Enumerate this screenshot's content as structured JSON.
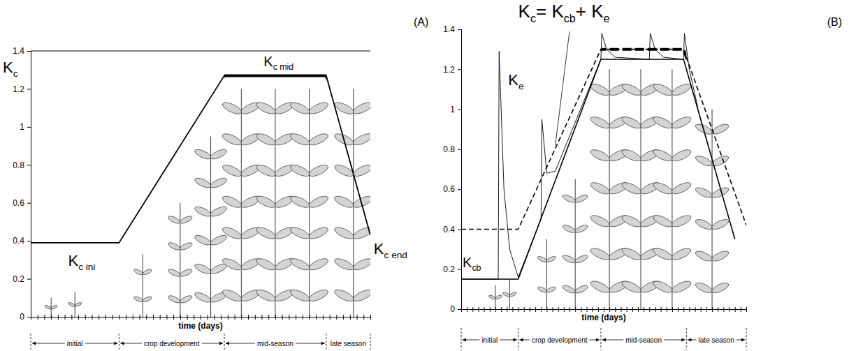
{
  "chart_data": [
    {
      "type": "line",
      "title": "(A)",
      "ylabel": {
        "parts": [
          {
            "text": "K"
          },
          {
            "sub": "c"
          }
        ]
      },
      "xlabel": "time (days)",
      "xlim": [
        0,
        100
      ],
      "ylim": [
        0,
        1.4
      ],
      "xticks": [
        0,
        2,
        4,
        6,
        8,
        10,
        12,
        14,
        16,
        18,
        20,
        22,
        24,
        26,
        28,
        30,
        32,
        34,
        36,
        38,
        40,
        42,
        44,
        46,
        48,
        50,
        52,
        54,
        56,
        58,
        60,
        62,
        64,
        66,
        68,
        70,
        72,
        74,
        76,
        78,
        80,
        82,
        84,
        86,
        88,
        90,
        92,
        94,
        96,
        98,
        100
      ],
      "yticks": [
        0,
        0.2,
        0.4,
        0.6,
        0.8,
        1,
        1.2,
        1.4
      ],
      "tick_labels": "y",
      "stages": [
        "initial",
        "crop development",
        "mid-season",
        "late season"
      ],
      "stage_bounds": [
        0,
        26,
        57,
        87,
        100
      ],
      "series": [
        {
          "color": "#000000",
          "line_style": "solid",
          "x": [
            0,
            26,
            57,
            87,
            100
          ],
          "values": [
            0.39,
            0.39,
            1.27,
            1.27,
            0.43
          ]
        }
      ],
      "annotations": [
        {
          "parts": [
            {
              "text": "K"
            },
            {
              "sub": "c ini"
            }
          ]
        },
        {
          "parts": [
            {
              "text": "K"
            },
            {
              "sub": "c mid"
            }
          ]
        },
        {
          "parts": [
            {
              "text": "K"
            },
            {
              "sub": "c end"
            }
          ]
        }
      ]
    },
    {
      "type": "line",
      "title": "(B)",
      "xlabel": "time (days)",
      "xlim": [
        0,
        100
      ],
      "ylim": [
        0,
        1.4
      ],
      "xticks": [
        0,
        2,
        4,
        6,
        8,
        10,
        12,
        14,
        16,
        18,
        20,
        22,
        24,
        26,
        28,
        30,
        32,
        34,
        36,
        38,
        40,
        42,
        44,
        46,
        48,
        50,
        52,
        54,
        56,
        58,
        60,
        62,
        64,
        66,
        68,
        70,
        72,
        74,
        76,
        78,
        80,
        82,
        84,
        86,
        88,
        90,
        92,
        94,
        96,
        98,
        100
      ],
      "yticks": [
        0,
        0.2,
        0.4,
        0.6,
        0.8,
        1,
        1.2,
        1.4
      ],
      "tick_labels": "y",
      "stages": [
        "initial",
        "crop development",
        "mid-season",
        "late season"
      ],
      "stage_bounds": [
        0,
        20,
        49,
        79,
        100
      ],
      "series": [
        {
          "color": "#000000",
          "line_style": "solid",
          "x": [
            0,
            20,
            49,
            78,
            96
          ],
          "values": [
            0.15,
            0.15,
            1.25,
            1.25,
            0.35
          ]
        },
        {
          "color": "#000000",
          "line_style": "dashed",
          "x": [
            0,
            20,
            49,
            78,
            100
          ],
          "values": [
            0.4,
            0.4,
            1.3,
            1.3,
            0.42
          ]
        },
        {
          "color": "#000000",
          "line_style": "solid",
          "x": [
            0,
            13,
            13.3,
            15,
            17,
            20,
            28,
            28.3,
            30,
            33,
            49,
            49.3,
            51,
            54,
            66,
            66.3,
            68,
            71,
            78,
            78.3,
            80,
            83
          ],
          "values": [
            0.15,
            0.15,
            1.29,
            0.6,
            0.3,
            0.16,
            0.45,
            0.95,
            0.68,
            0.69,
            1.25,
            1.38,
            1.3,
            1.26,
            1.25,
            1.38,
            1.3,
            1.26,
            1.25,
            1.38,
            1.2,
            1.01
          ]
        }
      ],
      "annotations": [
        {
          "parts": [
            {
              "text": "K"
            },
            {
              "sub": "c"
            },
            {
              "text": "= K"
            },
            {
              "sub": "cb"
            },
            {
              "text": "+ K"
            },
            {
              "sub": "e"
            }
          ]
        },
        {
          "parts": [
            {
              "text": "K"
            },
            {
              "sub": "e"
            }
          ]
        },
        {
          "parts": [
            {
              "text": "K"
            },
            {
              "sub": "cb"
            }
          ]
        }
      ]
    }
  ]
}
